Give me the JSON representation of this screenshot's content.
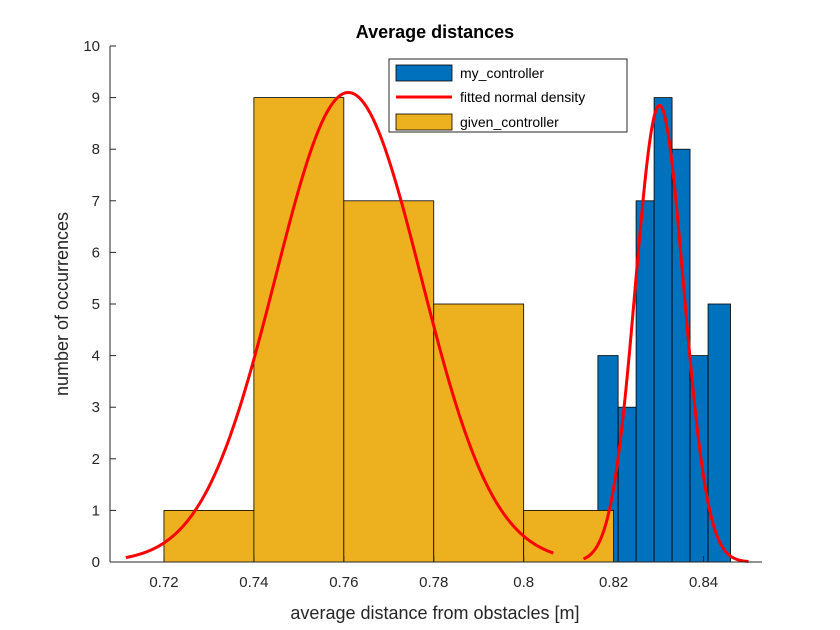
{
  "chart_data": {
    "type": "bar",
    "title": "Average distances",
    "xlabel": "average distance from obstacles [m]",
    "ylabel": "number of occurrences",
    "xlim": [
      0.708,
      0.853
    ],
    "ylim": [
      0,
      10
    ],
    "xticks": [
      "0.72",
      "0.74",
      "0.76",
      "0.78",
      "0.8",
      "0.82",
      "0.84"
    ],
    "yticks": [
      "0",
      "1",
      "2",
      "3",
      "4",
      "5",
      "6",
      "7",
      "8",
      "9",
      "10"
    ],
    "grid": false,
    "legend_position": "top-right",
    "legend": [
      "my_controller",
      "fitted normal density",
      "given_controller"
    ],
    "histograms": [
      {
        "name": "my_controller",
        "color": "#0072BD",
        "bin_edges": [
          0.8165,
          0.821,
          0.825,
          0.829,
          0.833,
          0.837,
          0.841,
          0.846
        ],
        "counts": [
          4,
          3,
          7,
          9,
          8,
          4,
          5
        ]
      },
      {
        "name": "given_controller",
        "color": "#EDB120",
        "bin_edges": [
          0.72,
          0.74,
          0.76,
          0.78,
          0.8,
          0.82
        ],
        "counts": [
          1,
          9,
          7,
          5,
          1
        ]
      }
    ],
    "fits": [
      {
        "name": "fitted normal density",
        "color": "#FF0000",
        "of": "given_controller",
        "mu": 0.761,
        "sigma": 0.0162,
        "peak": 9.1,
        "x_range": [
          0.7115,
          0.8066
        ]
      },
      {
        "name": "fitted normal density",
        "color": "#FF0000",
        "of": "my_controller",
        "mu": 0.8302,
        "sigma": 0.00535,
        "peak": 8.85,
        "x_range": [
          0.8133,
          0.85
        ]
      }
    ]
  }
}
